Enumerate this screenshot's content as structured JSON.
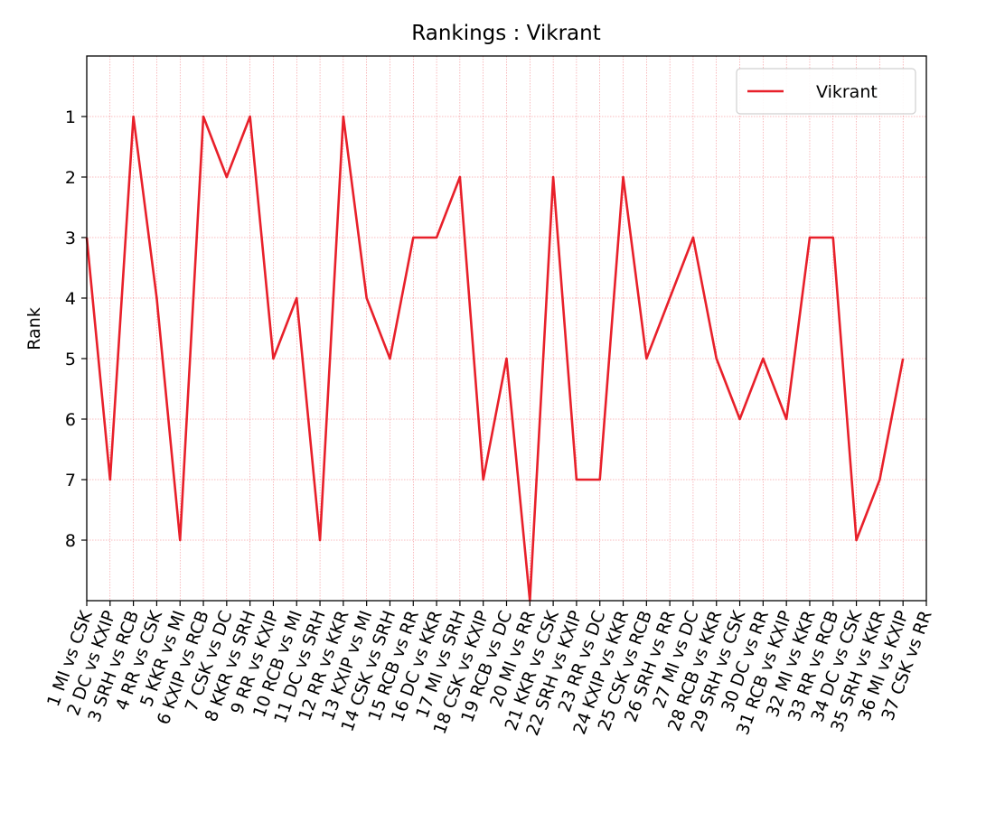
{
  "chart_data": {
    "type": "line",
    "title": "Rankings : Vikrant",
    "ylabel": "Rank",
    "categories": [
      "1 MI vs CSK",
      "2 DC vs KXIP",
      "3 SRH vs RCB",
      "4 RR vs CSK",
      "5 KKR vs MI",
      "6 KXIP vs RCB",
      "7 CSK vs DC",
      "8 KKR vs SRH",
      "9 RR vs KXIP",
      "10 RCB vs MI",
      "11 DC vs SRH",
      "12 RR vs KKR",
      "13 KXIP vs MI",
      "14 CSK vs SRH",
      "15 RCB vs RR",
      "16 DC vs KKR",
      "17 MI vs SRH",
      "18 CSK vs KXIP",
      "19 RCB vs DC",
      "20 MI vs RR",
      "21 KKR vs CSK",
      "22 SRH vs KXIP",
      "23 RR vs DC",
      "24 KXIP vs KKR",
      "25 CSK vs RCB",
      "26 SRH vs RR",
      "27 MI vs DC",
      "28 RCB vs KKR",
      "29 SRH vs CSK",
      "30 DC vs RR",
      "31 RCB vs KXIP",
      "32 MI vs KKR",
      "33 RR vs RCB",
      "34 DC vs CSK",
      "35 SRH vs KKR",
      "36 MI vs KXIP",
      "37 CSK vs RR"
    ],
    "series": [
      {
        "name": "Vikrant",
        "color": "#e8202a",
        "values": [
          3,
          7,
          1,
          4,
          8,
          1,
          2,
          1,
          5,
          4,
          8,
          1,
          4,
          5,
          3,
          3,
          2,
          7,
          5,
          9,
          2,
          7,
          7,
          2,
          5,
          4,
          3,
          5,
          6,
          5,
          6,
          3,
          3,
          8,
          7,
          5,
          null
        ]
      }
    ],
    "ylim": [
      9,
      0
    ],
    "yticks": [
      1,
      2,
      3,
      4,
      5,
      6,
      7,
      8
    ],
    "y_inverted": true,
    "grid": true,
    "legend": "upper right"
  }
}
